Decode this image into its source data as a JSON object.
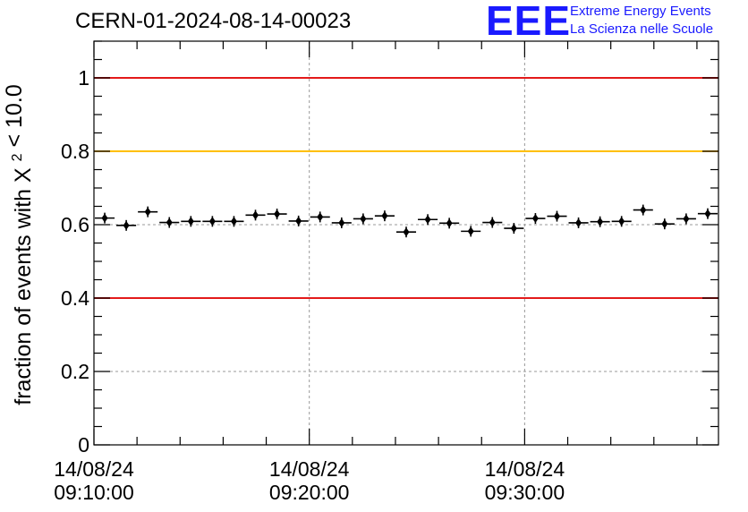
{
  "title": "CERN-01-2024-08-14-00023",
  "logo": {
    "mark": "EEE",
    "line1": "Extreme Energy Events",
    "line2": "La Scienza nelle Scuole"
  },
  "colors": {
    "limit_red": "#e31a1a",
    "limit_yellow": "#ffc000",
    "marker": "#000000",
    "grid": "#999999",
    "logo_blue": "#1a1aff"
  },
  "chart_data": {
    "type": "scatter",
    "title": "CERN-01-2024-08-14-00023",
    "ylabel_prefix": "fraction of events with",
    "ylabel_symbol": "X",
    "ylabel_sup": "2",
    "ylabel_suffix": "< 10.0",
    "ylim": [
      0,
      1.1
    ],
    "xlim_minutes": [
      0,
      29
    ],
    "yticks": [
      {
        "value": 0,
        "label": "0"
      },
      {
        "value": 0.2,
        "label": "0.2"
      },
      {
        "value": 0.4,
        "label": "0.4"
      },
      {
        "value": 0.6,
        "label": "0.6"
      },
      {
        "value": 0.8,
        "label": "0.8"
      },
      {
        "value": 1,
        "label": "1"
      }
    ],
    "xticks": [
      {
        "minute": 0,
        "date": "14/08/24",
        "time": "09:10:00"
      },
      {
        "minute": 10,
        "date": "14/08/24",
        "time": "09:20:00"
      },
      {
        "minute": 20,
        "date": "14/08/24",
        "time": "09:30:00"
      }
    ],
    "reference_lines": [
      {
        "value": 1.0,
        "color": "#e31a1a"
      },
      {
        "value": 0.8,
        "color": "#ffc000"
      },
      {
        "value": 0.4,
        "color": "#e31a1a"
      }
    ],
    "grid": true,
    "points": [
      {
        "minute": 0.5,
        "value": 0.618
      },
      {
        "minute": 1.5,
        "value": 0.598
      },
      {
        "minute": 2.5,
        "value": 0.635
      },
      {
        "minute": 3.5,
        "value": 0.606
      },
      {
        "minute": 4.5,
        "value": 0.609
      },
      {
        "minute": 5.5,
        "value": 0.609
      },
      {
        "minute": 6.5,
        "value": 0.609
      },
      {
        "minute": 7.5,
        "value": 0.626
      },
      {
        "minute": 8.5,
        "value": 0.629
      },
      {
        "minute": 9.5,
        "value": 0.61
      },
      {
        "minute": 10.5,
        "value": 0.621
      },
      {
        "minute": 11.5,
        "value": 0.605
      },
      {
        "minute": 12.5,
        "value": 0.616
      },
      {
        "minute": 13.5,
        "value": 0.624
      },
      {
        "minute": 14.5,
        "value": 0.58
      },
      {
        "minute": 15.5,
        "value": 0.614
      },
      {
        "minute": 16.5,
        "value": 0.604
      },
      {
        "minute": 17.5,
        "value": 0.582
      },
      {
        "minute": 18.5,
        "value": 0.606
      },
      {
        "minute": 19.5,
        "value": 0.59
      },
      {
        "minute": 20.5,
        "value": 0.617
      },
      {
        "minute": 21.5,
        "value": 0.623
      },
      {
        "minute": 22.5,
        "value": 0.605
      },
      {
        "minute": 23.5,
        "value": 0.608
      },
      {
        "minute": 24.5,
        "value": 0.609
      },
      {
        "minute": 25.5,
        "value": 0.64
      },
      {
        "minute": 26.5,
        "value": 0.602
      },
      {
        "minute": 27.5,
        "value": 0.616
      },
      {
        "minute": 28.5,
        "value": 0.63
      }
    ]
  }
}
